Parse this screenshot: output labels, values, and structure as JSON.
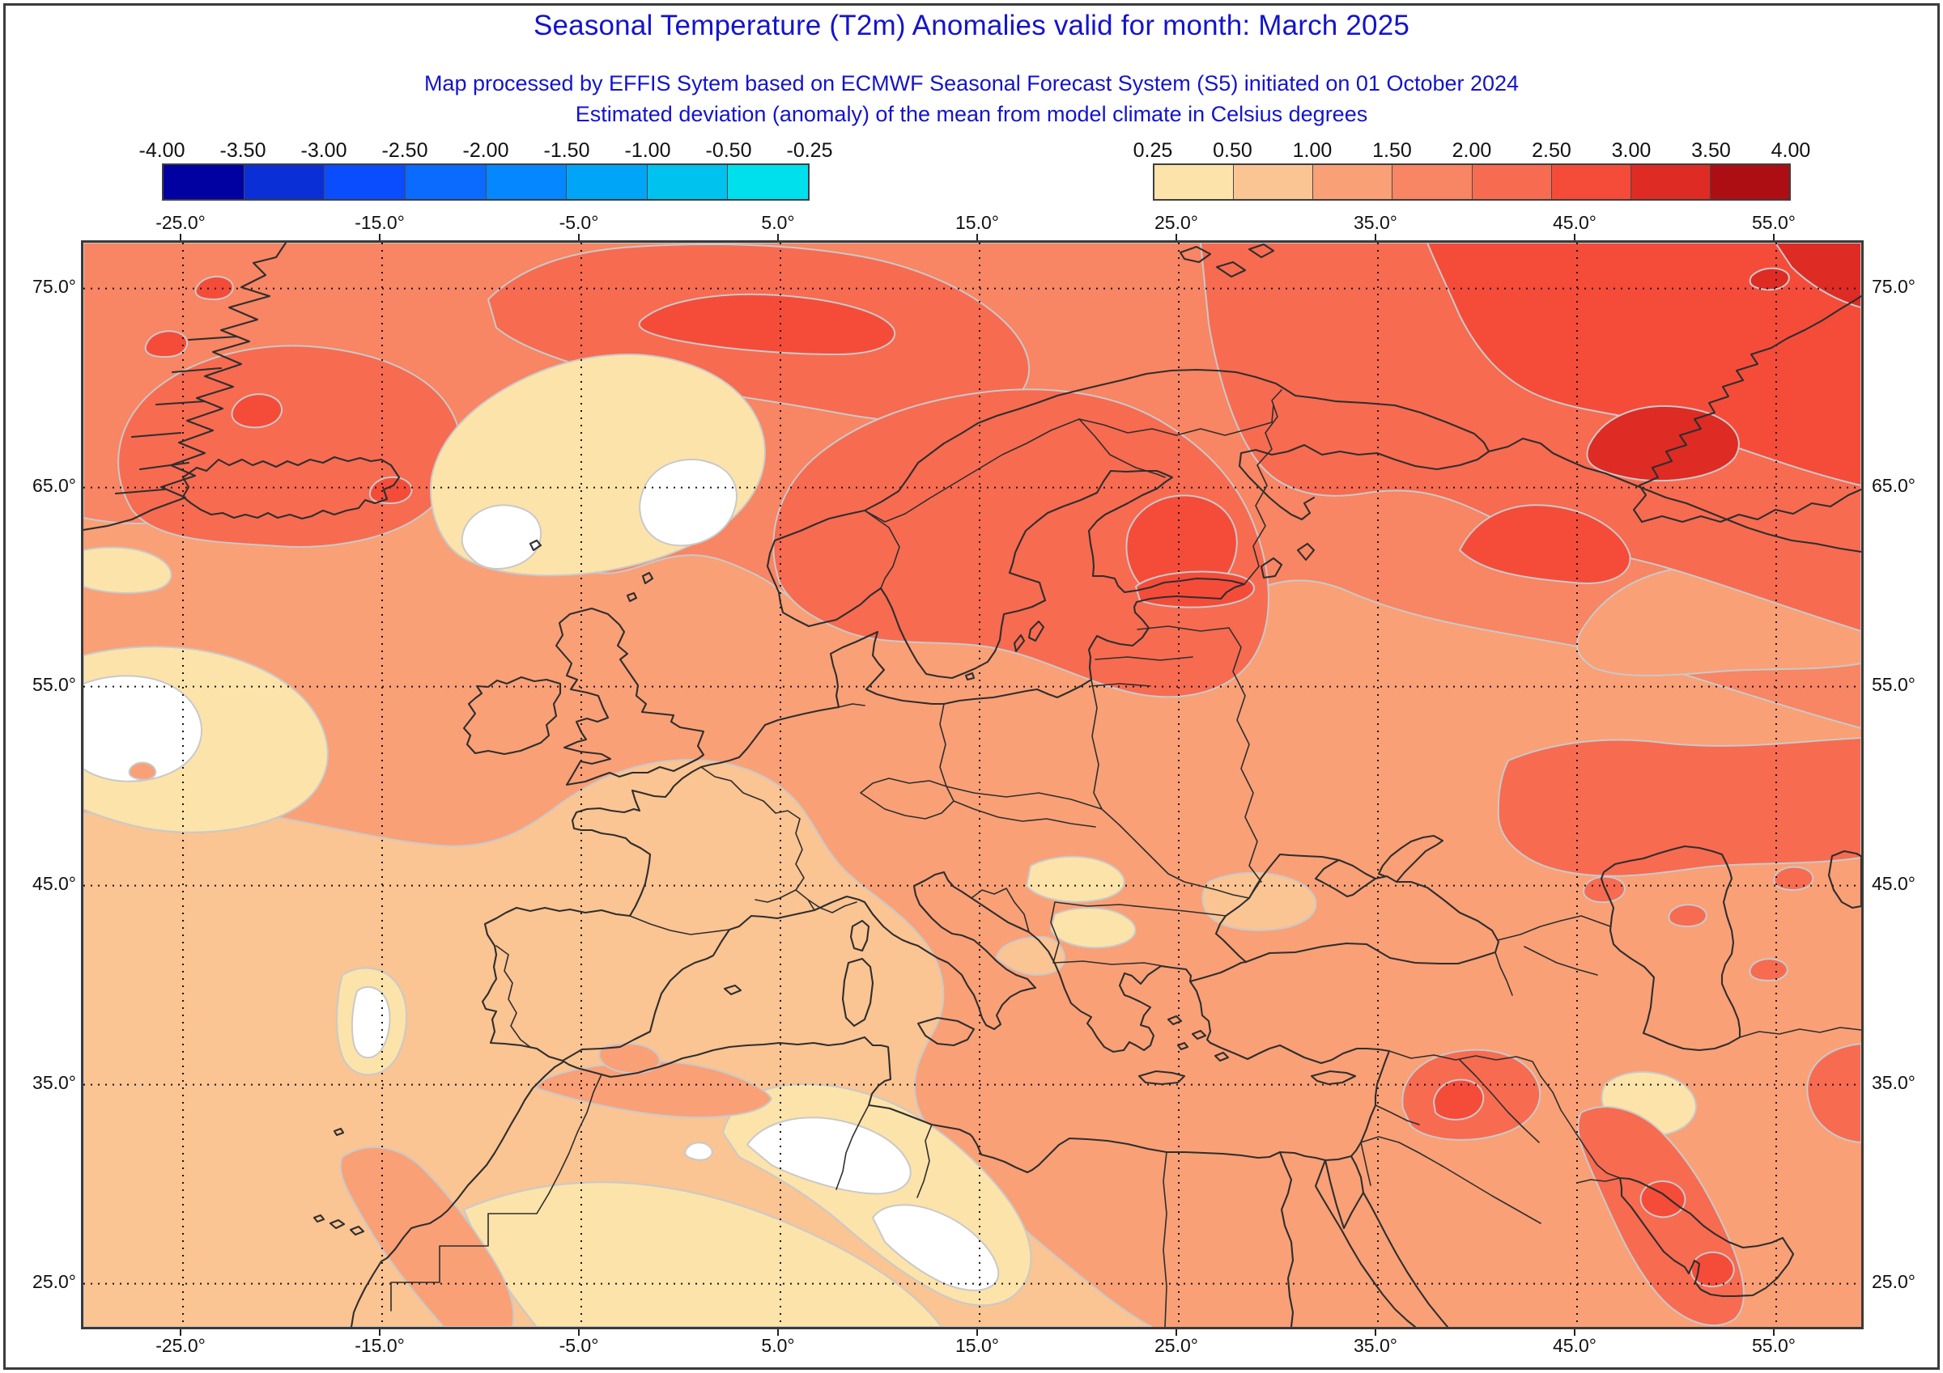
{
  "header": {
    "title": "Seasonal Temperature (T2m) Anomalies valid for month: March 2025",
    "subtitle": "Map processed by EFFIS Sytem based on ECMWF Seasonal Forecast System (S5) initiated on 01 October 2024",
    "subtitle2": "Estimated deviation (anomaly) of the mean from model climate in Celsius degrees",
    "title_color": "#1414CC"
  },
  "legend": {
    "negative": {
      "ticks": [
        "-4.00",
        "-3.50",
        "-3.00",
        "-2.50",
        "-2.00",
        "-1.50",
        "-1.00",
        "-0.50",
        "-0.25"
      ],
      "colors": [
        "#0001A0",
        "#0A2FD6",
        "#0A4DFF",
        "#0B6AFF",
        "#0587FF",
        "#00A5F8",
        "#00C2EF",
        "#00E0EC"
      ]
    },
    "positive": {
      "ticks": [
        "0.25",
        "0.50",
        "1.00",
        "1.50",
        "2.00",
        "2.50",
        "3.00",
        "3.50",
        "4.00"
      ],
      "colors": [
        "#FCE3AA",
        "#FAC493",
        "#F9A077",
        "#F88563",
        "#F76B51",
        "#F54C3A",
        "#DE2B24",
        "#AC0E13"
      ]
    }
  },
  "map": {
    "lon_labels": [
      "-25.0°",
      "-15.0°",
      "-5.0°",
      "5.0°",
      "15.0°",
      "25.0°",
      "35.0°",
      "45.0°",
      "55.0°"
    ],
    "lat_labels": [
      "75.0°",
      "65.0°",
      "55.0°",
      "45.0°",
      "35.0°",
      "25.0°"
    ],
    "no_anomaly_color": "#FFFFFF",
    "coastline_color": "#2E2E2E",
    "contour_line_color": "#C9C9C9",
    "grid_style": "dotted"
  }
}
